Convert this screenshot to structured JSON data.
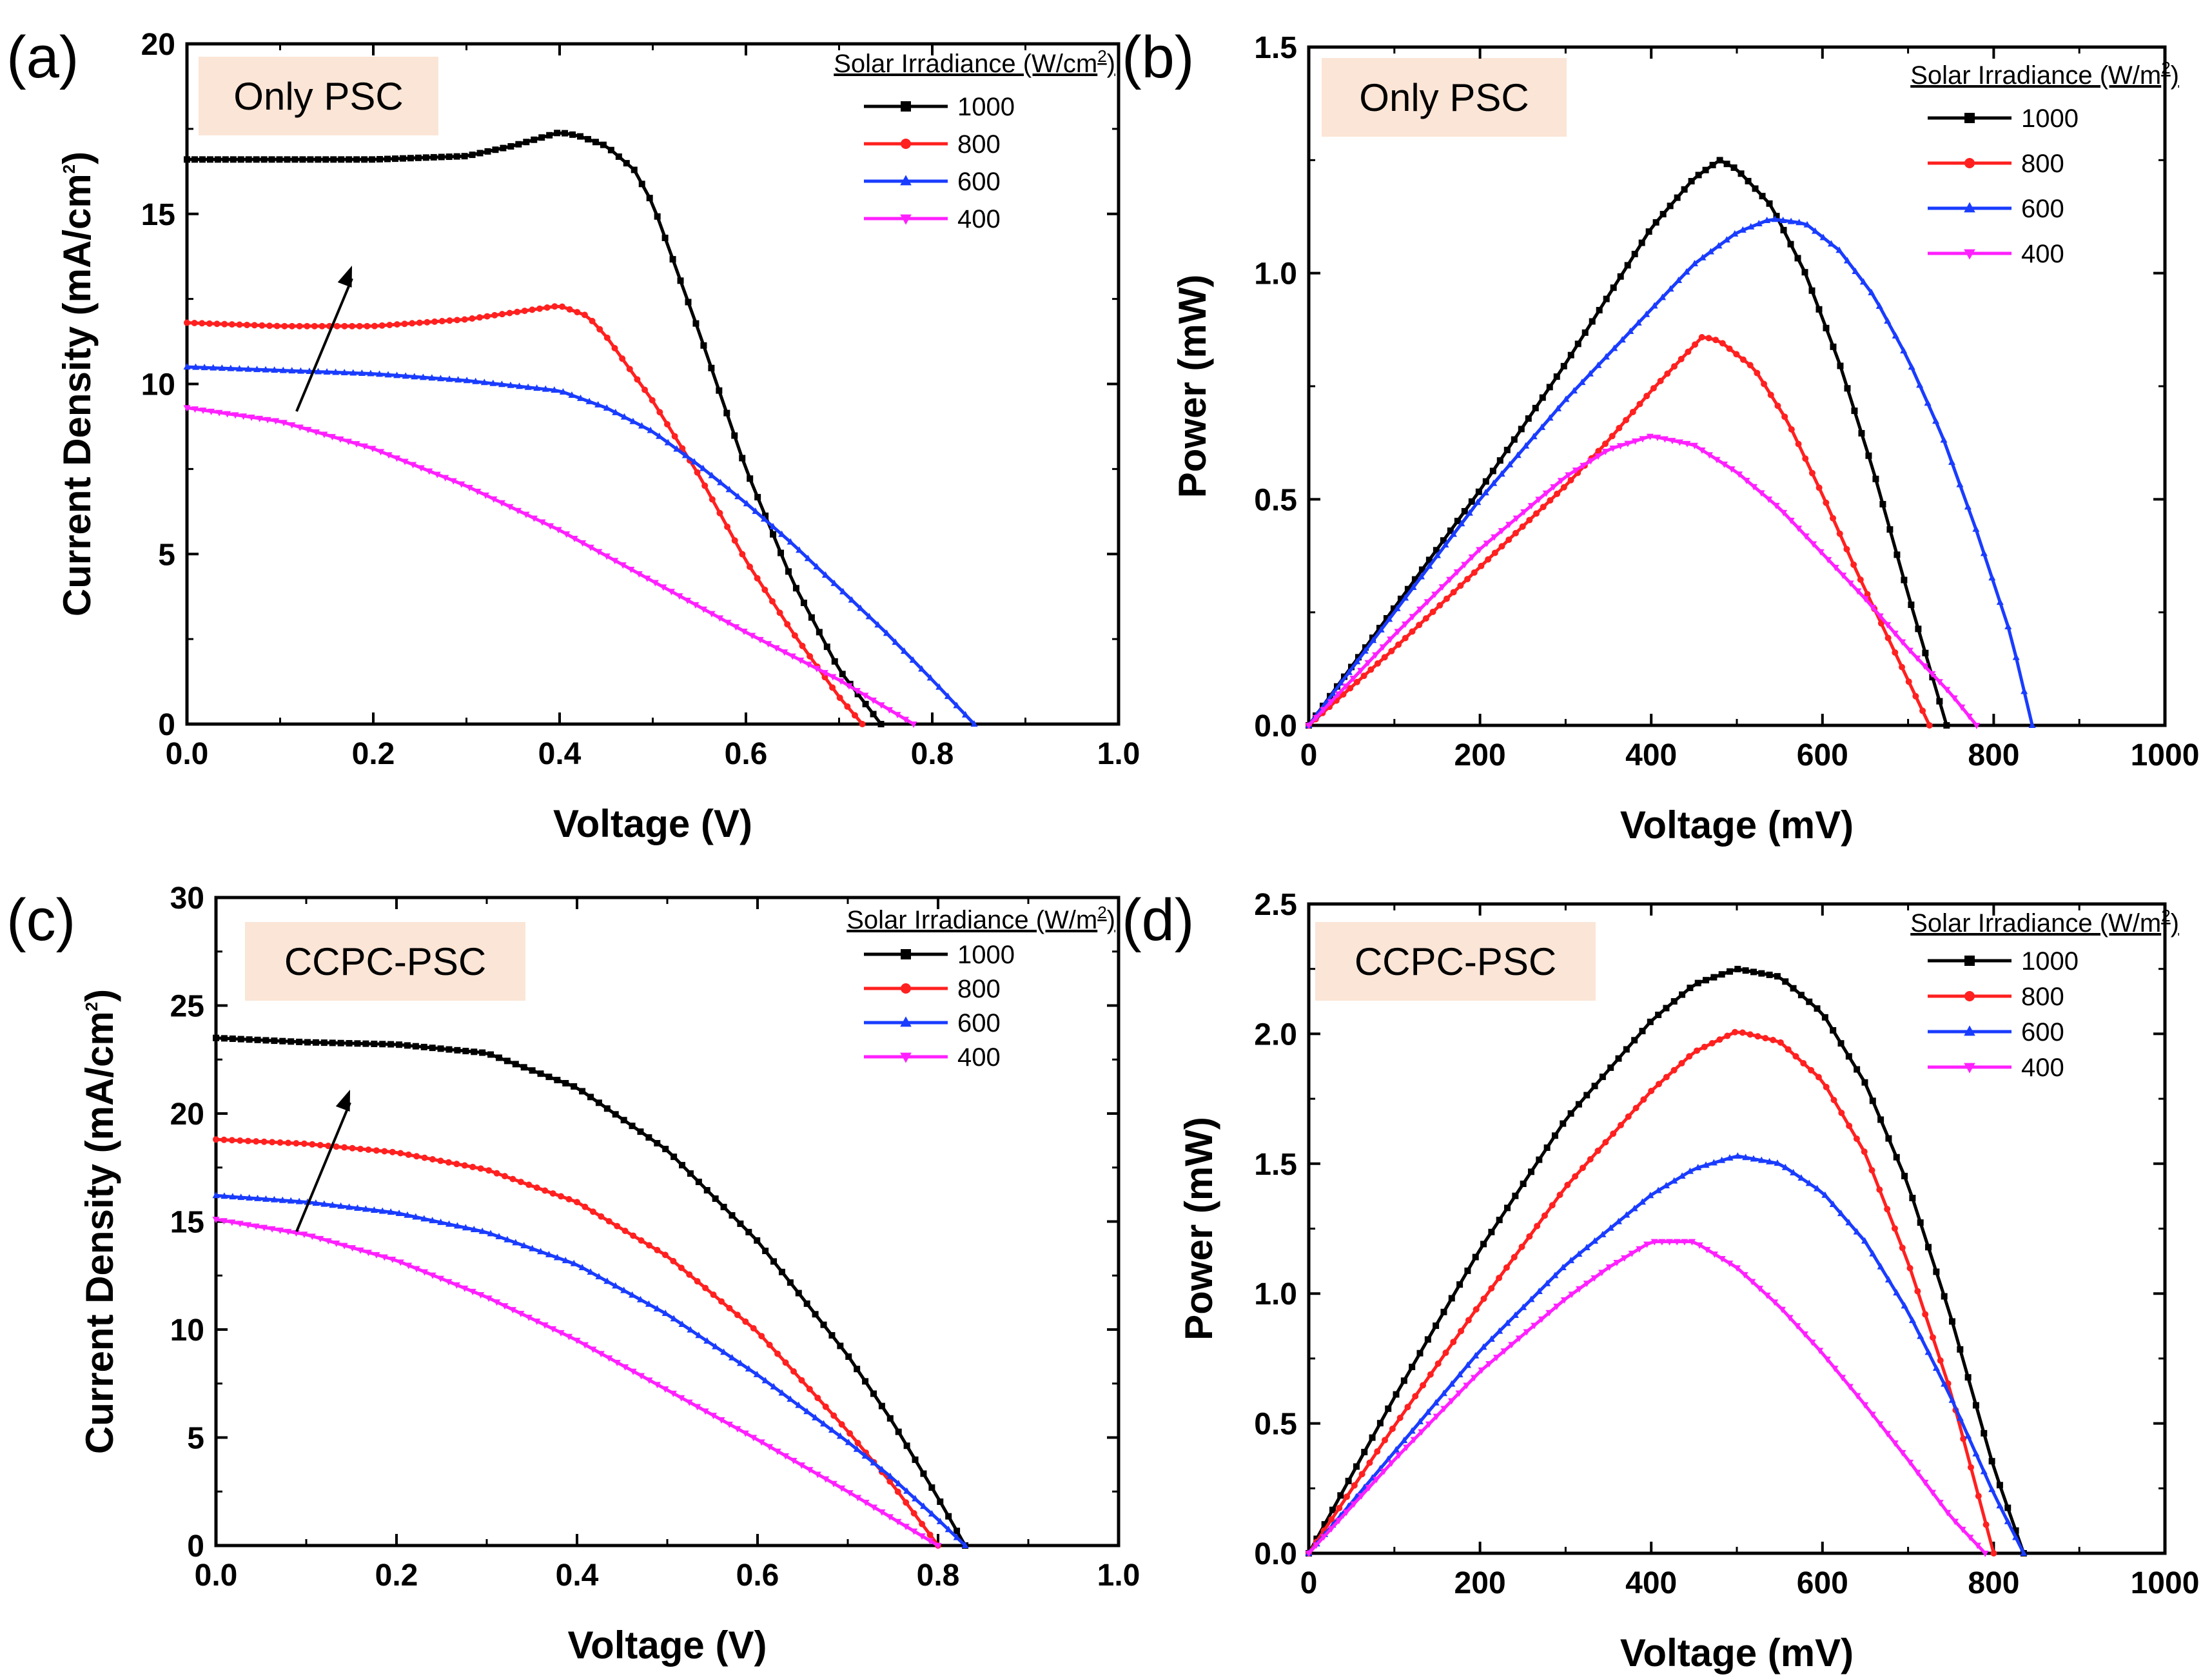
{
  "figure": {
    "panels": [
      {
        "letter": "(a)",
        "tag": "Only PSC",
        "legend_title": "Solar Irradiance (W/cm",
        "legend_title_sup": "2",
        "legend_title_end": ")",
        "xlabel": "Voltage (V)",
        "ylabel_main": "Current Density (mA/cm",
        "ylabel_sup": "2",
        "ylabel_end": ")",
        "trend_arrow": true
      },
      {
        "letter": "(b)",
        "tag": "Only PSC",
        "legend_title": "Solar Irradiance (W/m",
        "legend_title_sup": "2",
        "legend_title_end": ")",
        "xlabel": "Voltage (mV)",
        "ylabel_main": "Power (mW)",
        "ylabel_sup": "",
        "ylabel_end": "",
        "trend_arrow": false
      },
      {
        "letter": "(c)",
        "tag": "CCPC-PSC",
        "legend_title": "Solar Irradiance (W/m",
        "legend_title_sup": "2",
        "legend_title_end": ")",
        "xlabel": "Voltage (V)",
        "ylabel_main": "Current Density (mA/cm",
        "ylabel_sup": "2",
        "ylabel_end": ")",
        "trend_arrow": true
      },
      {
        "letter": "(d)",
        "tag": "CCPC-PSC",
        "legend_title": "Solar Irradiance (W/m",
        "legend_title_sup": "2",
        "legend_title_end": ")",
        "xlabel": "Voltage (mV)",
        "ylabel_main": "Power (mW)",
        "ylabel_sup": "",
        "ylabel_end": "",
        "trend_arrow": false
      }
    ]
  },
  "colors": {
    "s1000": "#000000",
    "s800": "#ff2020",
    "s600": "#1a3cff",
    "s400": "#ff20ff",
    "tag_bg": "#fbe5d6"
  },
  "chart_data": [
    {
      "type": "line",
      "title": "(a) Only PSC",
      "xlabel": "Voltage (V)",
      "ylabel": "Current Density (mA/cm2)",
      "xlim": [
        0,
        1.0
      ],
      "ylim": [
        0,
        20
      ],
      "xticks": [
        "0.0",
        "0.2",
        "0.4",
        "0.6",
        "0.8",
        "1.0"
      ],
      "yticks": [
        "0",
        "5",
        "10",
        "15",
        "20"
      ],
      "legend_title": "Solar Irradiance (W/cm2)",
      "series": [
        {
          "name": "1000",
          "marker": "square",
          "x": [
            0,
            0.1,
            0.2,
            0.3,
            0.35,
            0.4,
            0.42,
            0.45,
            0.48,
            0.5,
            0.55,
            0.6,
            0.65,
            0.7,
            0.745
          ],
          "y": [
            16.6,
            16.6,
            16.6,
            16.7,
            17.0,
            17.4,
            17.3,
            17.0,
            16.3,
            15.3,
            11.5,
            7.5,
            4.2,
            1.6,
            0
          ]
        },
        {
          "name": "800",
          "marker": "circle",
          "x": [
            0,
            0.1,
            0.2,
            0.3,
            0.35,
            0.4,
            0.43,
            0.45,
            0.5,
            0.55,
            0.6,
            0.65,
            0.7,
            0.725
          ],
          "y": [
            11.8,
            11.7,
            11.7,
            11.9,
            12.1,
            12.3,
            12.0,
            11.4,
            9.5,
            7.3,
            4.8,
            2.7,
            0.8,
            0
          ]
        },
        {
          "name": "600",
          "marker": "triangle-up",
          "x": [
            0,
            0.1,
            0.2,
            0.3,
            0.4,
            0.45,
            0.5,
            0.55,
            0.6,
            0.65,
            0.7,
            0.75,
            0.8,
            0.845
          ],
          "y": [
            10.5,
            10.4,
            10.3,
            10.1,
            9.8,
            9.3,
            8.6,
            7.6,
            6.5,
            5.3,
            4.0,
            2.7,
            1.3,
            0
          ]
        },
        {
          "name": "400",
          "marker": "triangle-down",
          "x": [
            0,
            0.1,
            0.2,
            0.3,
            0.4,
            0.5,
            0.6,
            0.7,
            0.78
          ],
          "y": [
            9.3,
            8.9,
            8.1,
            7.0,
            5.7,
            4.2,
            2.7,
            1.3,
            0
          ]
        }
      ]
    },
    {
      "type": "line",
      "title": "(b) Only PSC",
      "xlabel": "Voltage (mV)",
      "ylabel": "Power (mW)",
      "xlim": [
        0,
        1000
      ],
      "ylim": [
        0,
        1.5
      ],
      "xticks": [
        "0",
        "200",
        "400",
        "600",
        "800",
        "1000"
      ],
      "yticks": [
        "0.0",
        "0.5",
        "1.0",
        "1.5"
      ],
      "legend_title": "Solar Irradiance (W/m2)",
      "series": [
        {
          "name": "1000",
          "marker": "square",
          "x": [
            0,
            100,
            200,
            300,
            350,
            400,
            450,
            480,
            500,
            540,
            580,
            620,
            660,
            700,
            745
          ],
          "y": [
            0,
            0.26,
            0.52,
            0.8,
            0.95,
            1.1,
            1.21,
            1.25,
            1.23,
            1.15,
            1.0,
            0.8,
            0.56,
            0.29,
            0
          ]
        },
        {
          "name": "800",
          "marker": "circle",
          "x": [
            0,
            100,
            200,
            300,
            350,
            400,
            450,
            460,
            480,
            520,
            560,
            600,
            640,
            680,
            725
          ],
          "y": [
            0,
            0.17,
            0.35,
            0.53,
            0.63,
            0.74,
            0.84,
            0.86,
            0.85,
            0.79,
            0.67,
            0.51,
            0.34,
            0.18,
            0
          ]
        },
        {
          "name": "600",
          "marker": "triangle-up",
          "x": [
            0,
            100,
            200,
            300,
            400,
            450,
            500,
            540,
            580,
            620,
            660,
            700,
            740,
            780,
            820,
            845
          ],
          "y": [
            0,
            0.25,
            0.5,
            0.72,
            0.92,
            1.02,
            1.09,
            1.12,
            1.11,
            1.05,
            0.95,
            0.81,
            0.64,
            0.43,
            0.2,
            0
          ]
        },
        {
          "name": "400",
          "marker": "triangle-down",
          "x": [
            0,
            100,
            200,
            300,
            350,
            400,
            450,
            500,
            550,
            600,
            650,
            700,
            750,
            780
          ],
          "y": [
            0,
            0.2,
            0.39,
            0.55,
            0.61,
            0.64,
            0.62,
            0.56,
            0.48,
            0.38,
            0.28,
            0.17,
            0.07,
            0
          ]
        }
      ]
    },
    {
      "type": "line",
      "title": "(c) CCPC-PSC",
      "xlabel": "Voltage (V)",
      "ylabel": "Current Density (mA/cm2)",
      "xlim": [
        0,
        1.0
      ],
      "ylim": [
        0,
        30
      ],
      "xticks": [
        "0.0",
        "0.2",
        "0.4",
        "0.6",
        "0.8",
        "1.0"
      ],
      "yticks": [
        "0",
        "5",
        "10",
        "15",
        "20",
        "25",
        "30"
      ],
      "legend_title": "Solar Irradiance (W/m2)",
      "series": [
        {
          "name": "1000",
          "marker": "square",
          "x": [
            0,
            0.1,
            0.2,
            0.3,
            0.4,
            0.5,
            0.6,
            0.7,
            0.75,
            0.8,
            0.83
          ],
          "y": [
            23.5,
            23.3,
            23.2,
            22.8,
            21.2,
            18.3,
            14.1,
            8.8,
            5.7,
            2.2,
            0
          ]
        },
        {
          "name": "800",
          "marker": "circle",
          "x": [
            0,
            0.1,
            0.2,
            0.3,
            0.4,
            0.5,
            0.6,
            0.7,
            0.75,
            0.8
          ],
          "y": [
            18.8,
            18.6,
            18.2,
            17.4,
            15.9,
            13.4,
            9.9,
            5.3,
            2.8,
            0
          ]
        },
        {
          "name": "600",
          "marker": "triangle-up",
          "x": [
            0,
            0.1,
            0.2,
            0.3,
            0.4,
            0.5,
            0.6,
            0.7,
            0.75,
            0.8,
            0.83
          ],
          "y": [
            16.2,
            15.9,
            15.4,
            14.5,
            13.0,
            10.7,
            7.9,
            4.8,
            3.1,
            1.2,
            0
          ]
        },
        {
          "name": "400",
          "marker": "triangle-down",
          "x": [
            0,
            0.1,
            0.2,
            0.3,
            0.4,
            0.5,
            0.6,
            0.7,
            0.8
          ],
          "y": [
            15.1,
            14.4,
            13.2,
            11.5,
            9.5,
            7.2,
            4.9,
            2.5,
            0
          ]
        }
      ]
    },
    {
      "type": "line",
      "title": "(d) CCPC-PSC",
      "xlabel": "Voltage (mV)",
      "ylabel": "Power (mW)",
      "xlim": [
        0,
        1000
      ],
      "ylim": [
        0,
        2.5
      ],
      "xticks": [
        "0",
        "200",
        "400",
        "600",
        "800",
        "1000"
      ],
      "yticks": [
        "0.0",
        "0.5",
        "1.0",
        "1.5",
        "2.0",
        "2.5"
      ],
      "legend_title": "Solar Irradiance (W/m2)",
      "series": [
        {
          "name": "1000",
          "marker": "square",
          "x": [
            0,
            100,
            200,
            300,
            400,
            450,
            500,
            550,
            600,
            650,
            700,
            750,
            800,
            835
          ],
          "y": [
            0,
            0.6,
            1.17,
            1.67,
            2.05,
            2.19,
            2.25,
            2.22,
            2.08,
            1.81,
            1.42,
            0.91,
            0.33,
            0
          ]
        },
        {
          "name": "800",
          "marker": "circle",
          "x": [
            0,
            100,
            200,
            300,
            400,
            450,
            500,
            550,
            600,
            650,
            700,
            750,
            800
          ],
          "y": [
            0,
            0.49,
            0.96,
            1.41,
            1.78,
            1.93,
            2.01,
            1.97,
            1.82,
            1.54,
            1.12,
            0.62,
            0
          ]
        },
        {
          "name": "600",
          "marker": "triangle-up",
          "x": [
            0,
            100,
            200,
            300,
            400,
            450,
            500,
            550,
            600,
            650,
            700,
            750,
            800,
            835
          ],
          "y": [
            0,
            0.39,
            0.78,
            1.11,
            1.38,
            1.48,
            1.53,
            1.5,
            1.39,
            1.2,
            0.93,
            0.6,
            0.23,
            0
          ]
        },
        {
          "name": "400",
          "marker": "triangle-down",
          "x": [
            0,
            100,
            200,
            300,
            350,
            400,
            450,
            500,
            550,
            600,
            650,
            700,
            750,
            790
          ],
          "y": [
            0,
            0.36,
            0.7,
            0.98,
            1.1,
            1.2,
            1.2,
            1.1,
            0.95,
            0.77,
            0.57,
            0.36,
            0.14,
            0
          ]
        }
      ]
    }
  ]
}
